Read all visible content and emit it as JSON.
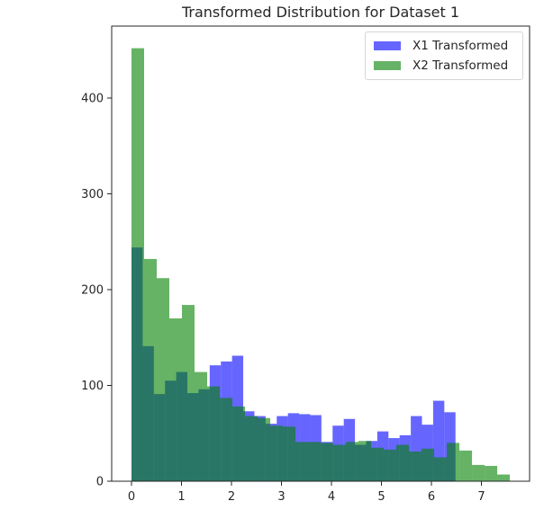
{
  "chart_data": {
    "type": "histogram",
    "title": "Transformed Distribution for Dataset 1",
    "xlabel": "",
    "ylabel": "",
    "xlim": [
      -0.4,
      7.95
    ],
    "ylim": [
      0,
      475
    ],
    "xticks": [
      0,
      1,
      2,
      3,
      4,
      5,
      6,
      7
    ],
    "yticks": [
      0,
      100,
      200,
      300,
      400
    ],
    "grid": false,
    "legend_position": "upper right",
    "series": [
      {
        "name": "X1 Transformed",
        "color": "#0000ff",
        "alpha": 0.6,
        "bin_start": 0.0,
        "bin_width": 0.2235,
        "values": [
          244,
          141,
          91,
          105,
          114,
          92,
          96,
          121,
          125,
          131,
          73,
          68,
          60,
          68,
          71,
          70,
          69,
          41,
          58,
          65,
          38,
          42,
          52,
          45,
          48,
          68,
          59,
          84,
          72
        ]
      },
      {
        "name": "X2 Transformed",
        "color": "#008000",
        "alpha": 0.6,
        "bin_start": 0.0,
        "bin_width": 0.2523,
        "values": [
          452,
          232,
          212,
          170,
          184,
          114,
          99,
          87,
          78,
          68,
          66,
          58,
          57,
          41,
          41,
          40,
          38,
          41,
          42,
          35,
          33,
          38,
          31,
          34,
          25,
          40,
          32,
          17,
          16,
          7
        ]
      }
    ]
  },
  "legend": {
    "items": [
      {
        "label": "X1 Transformed",
        "color": "#6666ff"
      },
      {
        "label": "X2 Transformed",
        "color": "#66b266"
      }
    ]
  }
}
